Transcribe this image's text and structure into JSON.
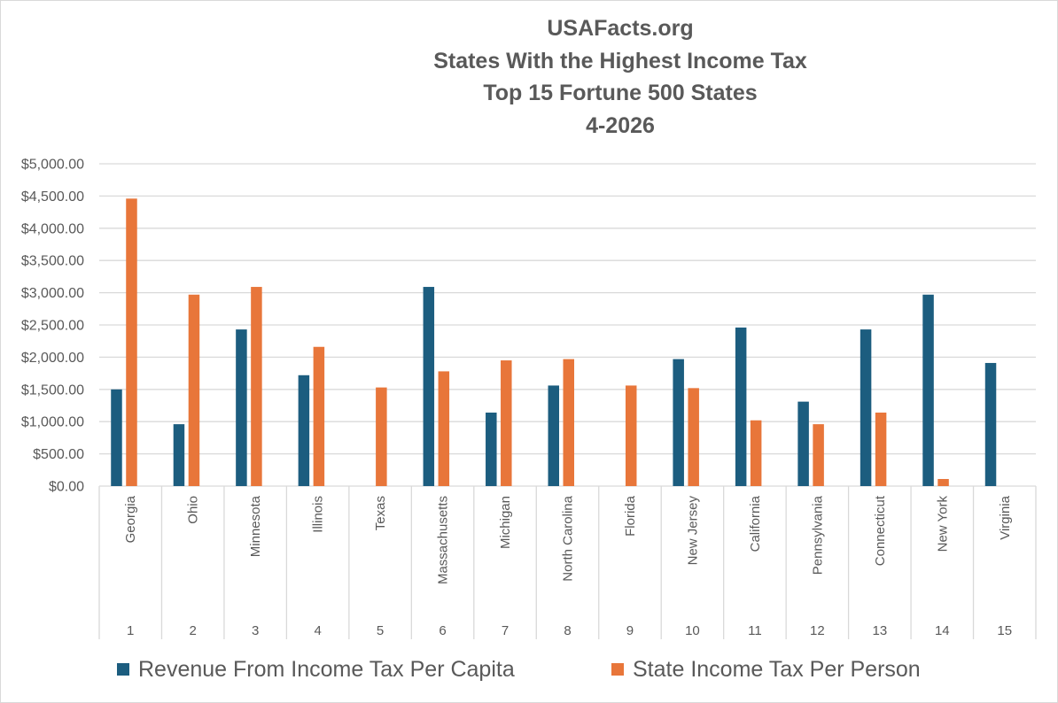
{
  "chart_data": {
    "type": "bar",
    "title_lines": [
      "USAFacts.org",
      "States With the Highest Income Tax",
      "Top 15 Fortune 500 States",
      "4-2026"
    ],
    "ylim": [
      0,
      5000
    ],
    "y_ticks": [
      "$0.00",
      "$500.00",
      "$1,000.00",
      "$1,500.00",
      "$2,000.00",
      "$2,500.00",
      "$3,000.00",
      "$3,500.00",
      "$4,000.00",
      "$4,500.00",
      "$5,000.00"
    ],
    "categories": [
      "Georgia",
      "Ohio",
      "Minnesota",
      "Illinois",
      "Texas",
      "Massachusetts",
      "Michigan",
      "North Carolina",
      "Florida",
      "New Jersey",
      "California",
      "Pennsylvania",
      "Connecticut",
      "New York",
      "Virginia"
    ],
    "ranks": [
      "1",
      "2",
      "3",
      "4",
      "5",
      "6",
      "7",
      "8",
      "9",
      "10",
      "11",
      "12",
      "13",
      "14",
      "15"
    ],
    "series": [
      {
        "name": "Revenue From Income Tax Per Capita",
        "color": "#1c5d7f",
        "values": [
          1500,
          960,
          2430,
          1720,
          0,
          3090,
          1140,
          1560,
          0,
          1970,
          2460,
          1310,
          2430,
          2970,
          1910
        ]
      },
      {
        "name": "State Income Tax Per Person",
        "color": "#e8763a",
        "values": [
          4460,
          2970,
          3090,
          2160,
          1530,
          1780,
          1950,
          1970,
          1560,
          1520,
          1020,
          960,
          1140,
          110,
          0
        ]
      }
    ],
    "grid": true,
    "legend_position": "bottom"
  }
}
